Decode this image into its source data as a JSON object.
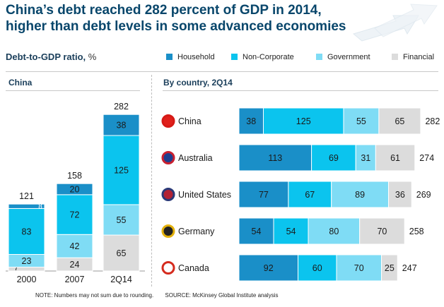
{
  "title": {
    "line1": "China’s debt reached 282 percent of GDP in 2014,",
    "line2": "higher than debt levels in some advanced economies"
  },
  "subtitle": {
    "label": "Debt-to-GDP ratio,",
    "unit": "%"
  },
  "legend": [
    {
      "name": "Household",
      "color": "#1a8fc8"
    },
    {
      "name": "Non-Corporate",
      "color": "#0bc4ee"
    },
    {
      "name": "Government",
      "color": "#7fdcf5"
    },
    {
      "name": "Financial",
      "color": "#dcdcdc"
    }
  ],
  "chart_data": [
    {
      "type": "bar",
      "stacked": true,
      "title": "China",
      "categories": [
        "2000",
        "2007",
        "2Q14"
      ],
      "totals": [
        121,
        158,
        282
      ],
      "series": [
        {
          "name": "Financial",
          "values": [
            7,
            24,
            65
          ]
        },
        {
          "name": "Government",
          "values": [
            23,
            42,
            55
          ]
        },
        {
          "name": "Non-Corporate",
          "values": [
            83,
            72,
            125
          ]
        },
        {
          "name": "Household",
          "values": [
            8,
            20,
            38
          ]
        }
      ],
      "ylim": [
        0,
        282
      ]
    },
    {
      "type": "bar",
      "orientation": "horizontal",
      "stacked": true,
      "title": "By country, 2Q14",
      "categories": [
        "China",
        "Australia",
        "United States",
        "Germany",
        "Canada"
      ],
      "totals": [
        282,
        274,
        269,
        258,
        247
      ],
      "series": [
        {
          "name": "Household",
          "values": [
            38,
            113,
            77,
            54,
            92
          ]
        },
        {
          "name": "Non-Corporate",
          "values": [
            125,
            69,
            67,
            54,
            60
          ]
        },
        {
          "name": "Government",
          "values": [
            55,
            31,
            89,
            80,
            70
          ]
        },
        {
          "name": "Financial",
          "values": [
            65,
            61,
            36,
            70,
            25
          ]
        }
      ],
      "xlim": [
        0,
        282
      ]
    }
  ],
  "note": "NOTE: Numbers may not sum due to rounding.",
  "source": "SOURCE: McKinsey Global Institute analysis"
}
